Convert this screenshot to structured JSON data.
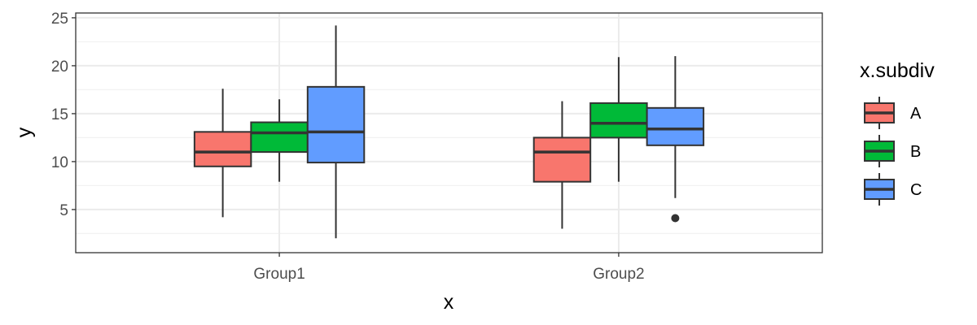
{
  "chart_data": {
    "type": "box",
    "xlabel": "x",
    "ylabel": "y",
    "ylim": [
      0.5,
      25.5
    ],
    "yticks": [
      5,
      10,
      15,
      20,
      25
    ],
    "grid": true,
    "legend_position": "right",
    "legend_title": "x.subdiv",
    "categories": [
      "Group1",
      "Group2"
    ],
    "series": [
      {
        "name": "A",
        "color": "#F8766D",
        "boxes": [
          {
            "category": "Group1",
            "min": 4.2,
            "q1": 9.5,
            "median": 11.0,
            "q3": 13.1,
            "max": 17.6,
            "outliers": []
          },
          {
            "category": "Group2",
            "min": 3.0,
            "q1": 7.9,
            "median": 11.0,
            "q3": 12.5,
            "max": 16.3,
            "outliers": []
          }
        ]
      },
      {
        "name": "B",
        "color": "#00BA38",
        "boxes": [
          {
            "category": "Group1",
            "min": 7.9,
            "q1": 11.0,
            "median": 13.0,
            "q3": 14.1,
            "max": 16.5,
            "outliers": []
          },
          {
            "category": "Group2",
            "min": 7.9,
            "q1": 12.5,
            "median": 14.0,
            "q3": 16.1,
            "max": 20.9,
            "outliers": []
          }
        ]
      },
      {
        "name": "C",
        "color": "#619CFF",
        "boxes": [
          {
            "category": "Group1",
            "min": 2.0,
            "q1": 9.9,
            "median": 13.1,
            "q3": 17.8,
            "max": 24.2,
            "outliers": []
          },
          {
            "category": "Group2",
            "min": 6.2,
            "q1": 11.7,
            "median": 13.4,
            "q3": 15.6,
            "max": 21.0,
            "outliers": [
              4.1
            ]
          }
        ]
      }
    ]
  }
}
